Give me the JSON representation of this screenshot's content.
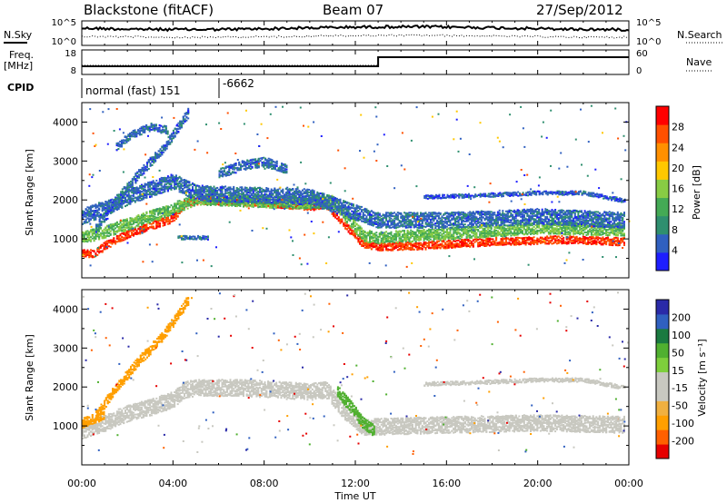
{
  "header": {
    "station": "Blackstone (fitACF)",
    "beam": "Beam 07",
    "date": "27/Sep/2012"
  },
  "top_panel": {
    "left_labels": {
      "nsky": "N.Sky",
      "freq_line1": "Freq.",
      "freq_line2": "[MHz]",
      "cpid": "CPID"
    },
    "right_labels": {
      "nsearch": "N.Search",
      "nave": "Nave"
    },
    "noise_ticks_left": [
      "10^5",
      "10^0"
    ],
    "noise_ticks_right": [
      "10^5",
      "10^0"
    ],
    "freq_ticks": [
      "18",
      "8"
    ],
    "nave_ticks": [
      "60",
      "0"
    ],
    "cpid_text": "normal (fast) 151",
    "cpid_value": "-6662"
  },
  "colors": {
    "power": [
      "#1e1eff",
      "#3060c0",
      "#2f8f6f",
      "#44aa55",
      "#88cc44",
      "#ffc800",
      "#ff9000",
      "#ff5000",
      "#ff0000"
    ],
    "velocity": [
      "#e60000",
      "#ff6000",
      "#ff9f00",
      "#f0b040",
      "#c8c8c0",
      "#c8c8c0",
      "#7ecf3c",
      "#50b030",
      "#1a7a40",
      "#3060c0",
      "#2a2aa8"
    ]
  },
  "chart_data": [
    {
      "type": "heatmap",
      "panel": "power",
      "ylabel": "Slant Range [km]",
      "ylim": [
        0,
        4500
      ],
      "yticks": [
        1000,
        2000,
        3000,
        4000
      ],
      "xlim": [
        0,
        24
      ],
      "colorbar": {
        "label": "Power [dB]",
        "range": [
          0,
          32
        ],
        "ticks": [
          4,
          8,
          12,
          16,
          20,
          24,
          28
        ]
      },
      "echo_bands": [
        {
          "x": [
            0.0,
            0.6,
            1.0,
            2.0,
            3.0,
            4.0,
            4.5,
            5.0,
            6.0,
            7.0,
            8.0,
            9.0,
            10.0,
            10.7,
            11.5,
            12.3,
            13.0,
            15.0,
            18.0,
            21.0,
            23.8
          ],
          "y": [
            650,
            650,
            850,
            1150,
            1350,
            1550,
            1950,
            2000,
            2000,
            1980,
            1950,
            1900,
            1850,
            1900,
            1400,
            900,
            820,
            850,
            950,
            1000,
            950
          ],
          "width": 200,
          "level": 28
        },
        {
          "x": [
            0.0,
            1.0,
            2.0,
            3.0,
            4.0,
            5.0,
            7.0,
            9.0,
            10.0,
            11.0,
            12.3,
            13.0,
            16.0,
            20.0,
            23.8
          ],
          "y": [
            1050,
            1200,
            1400,
            1600,
            1800,
            2050,
            2000,
            1950,
            1950,
            2000,
            1100,
            1050,
            1150,
            1300,
            1250
          ],
          "width": 300,
          "level": 14
        },
        {
          "x": [
            0.0,
            1.0,
            2.0,
            3.0,
            4.0,
            5.0,
            7.0,
            10.0,
            12.0,
            13.0,
            16.0,
            20.0,
            23.8
          ],
          "y": [
            1600,
            1800,
            2100,
            2300,
            2500,
            2200,
            2150,
            2100,
            1700,
            1500,
            1500,
            1600,
            1500
          ],
          "width": 400,
          "level": 6
        },
        {
          "x": [
            0.6,
            1.5,
            2.5,
            3.5,
            4.0,
            4.7
          ],
          "y": [
            1300,
            2000,
            2700,
            3300,
            3700,
            4300
          ],
          "width": 250,
          "level": 6
        },
        {
          "x": [
            1.5,
            2.2,
            3.0,
            3.8
          ],
          "y": [
            3400,
            3700,
            3900,
            3800
          ],
          "width": 200,
          "level": 6
        },
        {
          "x": [
            6.0,
            7.0,
            8.0,
            9.0
          ],
          "y": [
            2700,
            2900,
            3000,
            2800
          ],
          "width": 250,
          "level": 6
        },
        {
          "x": [
            15.0,
            18.0,
            20.0,
            22.0,
            23.8
          ],
          "y": [
            2100,
            2150,
            2200,
            2200,
            2000
          ],
          "width": 100,
          "level": 5
        },
        {
          "x": [
            4.2,
            5.5
          ],
          "y": [
            1050,
            1050
          ],
          "width": 100,
          "level": 6
        }
      ]
    },
    {
      "type": "heatmap",
      "panel": "velocity",
      "ylabel": "Slant Range [km]",
      "xlabel": "Time UT",
      "ylim": [
        0,
        4500
      ],
      "yticks": [
        1000,
        2000,
        3000,
        4000
      ],
      "xlim": [
        0,
        24
      ],
      "xticks": [
        "00:00",
        "04:00",
        "08:00",
        "12:00",
        "16:00",
        "20:00",
        "00:00"
      ],
      "colorbar": {
        "label": "Velocity [m s⁻¹]",
        "ticks": [
          "200",
          "100",
          "50",
          "15",
          "-15",
          "-50",
          "-100",
          "-200"
        ]
      },
      "echo_bands": [
        {
          "x": [
            0.0,
            1.0,
            2.0,
            3.0,
            4.0,
            4.5,
            5.0,
            7.0,
            10.0,
            10.7,
            11.5,
            12.3,
            13.0,
            16.0,
            20.0,
            23.8
          ],
          "y": [
            900,
            1100,
            1350,
            1500,
            1700,
            1950,
            2000,
            2000,
            1900,
            1950,
            1400,
            1000,
            1000,
            1050,
            1100,
            1050
          ],
          "width": 420,
          "level": -5
        },
        {
          "x": [
            0.6,
            1.5,
            2.5,
            3.5,
            4.0,
            4.7
          ],
          "y": [
            1300,
            2000,
            2700,
            3300,
            3700,
            4300
          ],
          "width": 250,
          "level": -60
        },
        {
          "x": [
            11.2,
            11.8,
            12.3,
            12.8
          ],
          "y": [
            1900,
            1500,
            1100,
            900
          ],
          "width": 300,
          "level": 40
        },
        {
          "x": [
            0.0,
            1.0
          ],
          "y": [
            1100,
            1300
          ],
          "width": 250,
          "level": -60
        },
        {
          "x": [
            15.0,
            18.0,
            20.0,
            22.0,
            23.8
          ],
          "y": [
            2100,
            2150,
            2200,
            2200,
            2000
          ],
          "width": 100,
          "level": -5
        }
      ]
    }
  ]
}
